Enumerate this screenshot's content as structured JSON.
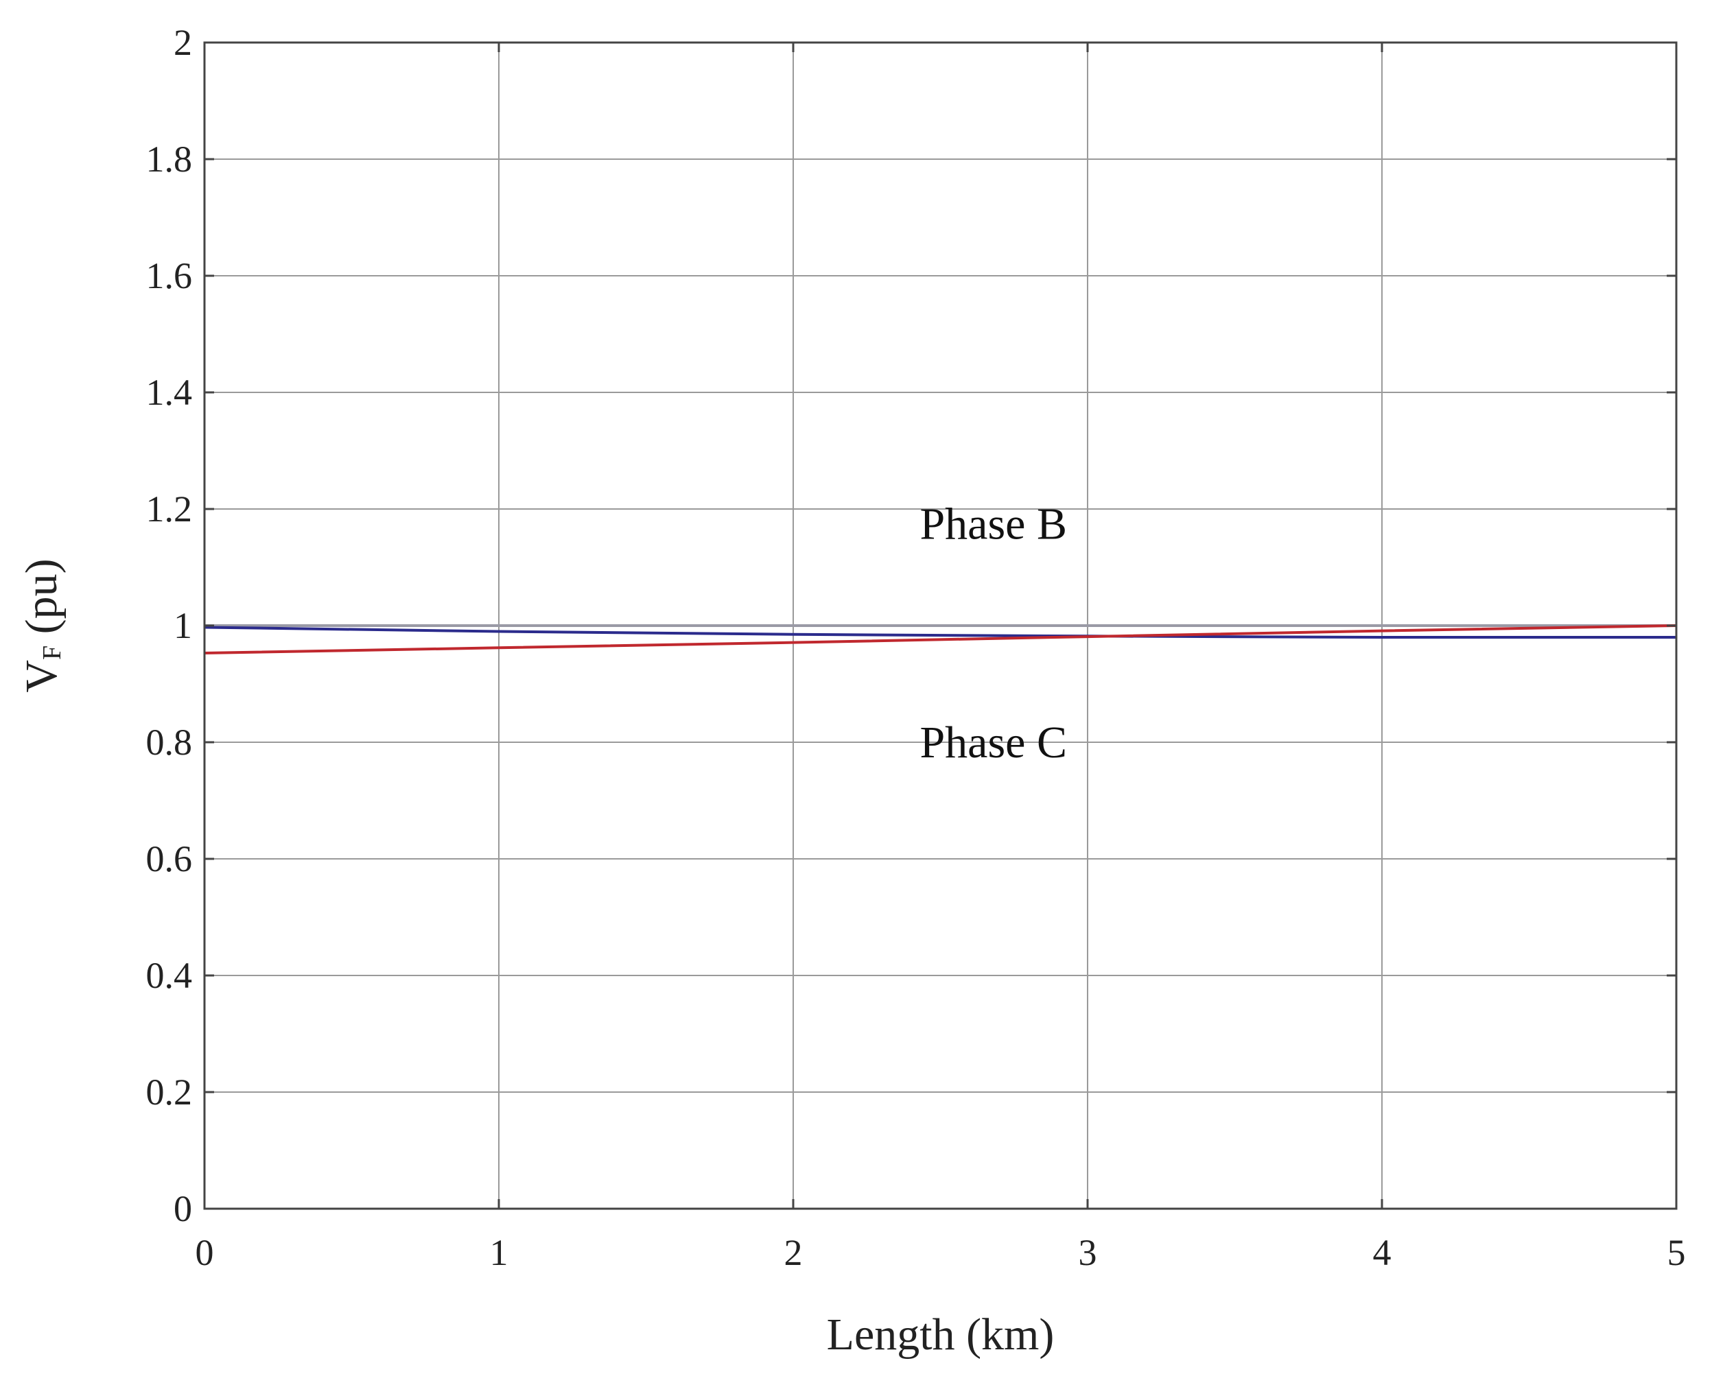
{
  "chart_data": {
    "type": "line",
    "xlabel": "Length (km)",
    "ylabel_main": "V",
    "ylabel_sub": "F",
    "ylabel_tail": " (pu)",
    "xlim": [
      0,
      5
    ],
    "ylim": [
      0,
      2
    ],
    "grid": true,
    "x_ticks": [
      "0",
      "1",
      "2",
      "3",
      "4",
      "5"
    ],
    "y_ticks": [
      "0",
      "0.2",
      "0.4",
      "0.6",
      "0.8",
      "1",
      "1.2",
      "1.4",
      "1.6",
      "1.8",
      "2"
    ],
    "annotations": [
      {
        "text": "Phase B",
        "x": 2.68,
        "y": 1.175
      },
      {
        "text": "Phase C",
        "x": 2.68,
        "y": 0.8
      }
    ],
    "series": [
      {
        "color": "#9a9aa6",
        "x": [
          0,
          1,
          2,
          3,
          4,
          5
        ],
        "y": [
          1.0,
          1.0,
          1.0,
          1.0,
          1.0,
          1.0
        ]
      },
      {
        "color": "#2b2b8c",
        "x": [
          0,
          1,
          2,
          3,
          4,
          5
        ],
        "y": [
          0.997,
          0.99,
          0.985,
          0.982,
          0.98,
          0.98
        ]
      },
      {
        "color": "#c0282e",
        "x": [
          0,
          1,
          2,
          3,
          4,
          5
        ],
        "y": [
          0.953,
          0.962,
          0.971,
          0.981,
          0.991,
          1.0
        ]
      }
    ]
  }
}
